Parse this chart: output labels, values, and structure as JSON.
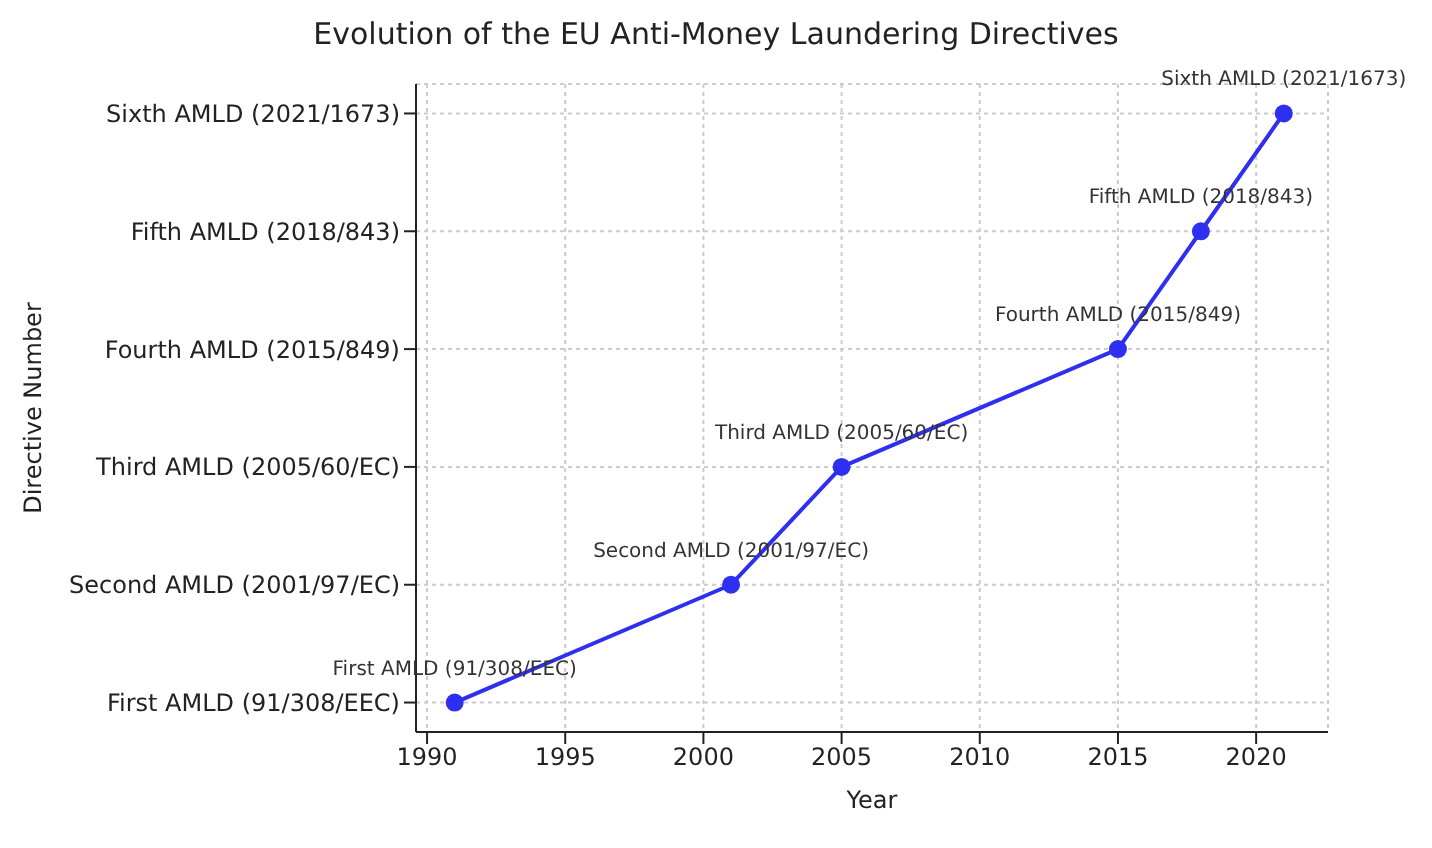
{
  "chart_data": {
    "type": "line",
    "orientation": "horizontal",
    "title": "Evolution of the EU Anti-Money Laundering Directives",
    "xlabel": "Year",
    "ylabel": "Directive Number",
    "categories": [
      "Sixth AMLD (2021/1673)",
      "Fifth AMLD (2018/843)",
      "Fourth AMLD (2015/849)",
      "Third AMLD (2005/60/EC)",
      "Second AMLD (2001/97/EC)",
      "First AMLD (91/308/EEC)"
    ],
    "series": [
      {
        "color": "#2f2ff0",
        "values": [
          2021,
          2018,
          2015,
          2005,
          2001,
          1991
        ]
      }
    ],
    "xlim": [
      1989.6,
      2022.6
    ],
    "xticks": [
      1990,
      1995,
      2000,
      2005,
      2010,
      2015,
      2020
    ],
    "annotations": [
      {
        "text": "First AMLD (91/308/EEC)",
        "x": 1991,
        "y": "First AMLD (91/308/EEC)"
      },
      {
        "text": "Second AMLD (2001/97/EC)",
        "x": 2001,
        "y": "Second AMLD (2001/97/EC)"
      },
      {
        "text": "Third AMLD (2005/60/EC)",
        "x": 2005,
        "y": "Third AMLD (2005/60/EC)"
      },
      {
        "text": "Fourth AMLD (2015/849)",
        "x": 2015,
        "y": "Fourth AMLD (2015/849)"
      },
      {
        "text": "Fifth AMLD (2018/843)",
        "x": 2018,
        "y": "Fifth AMLD (2018/843)"
      },
      {
        "text": "Sixth AMLD (2021/1673)",
        "x": 2021,
        "y": "Sixth AMLD (2021/1673)"
      }
    ],
    "grid": true,
    "marker": "circle",
    "line_style": "solid"
  }
}
